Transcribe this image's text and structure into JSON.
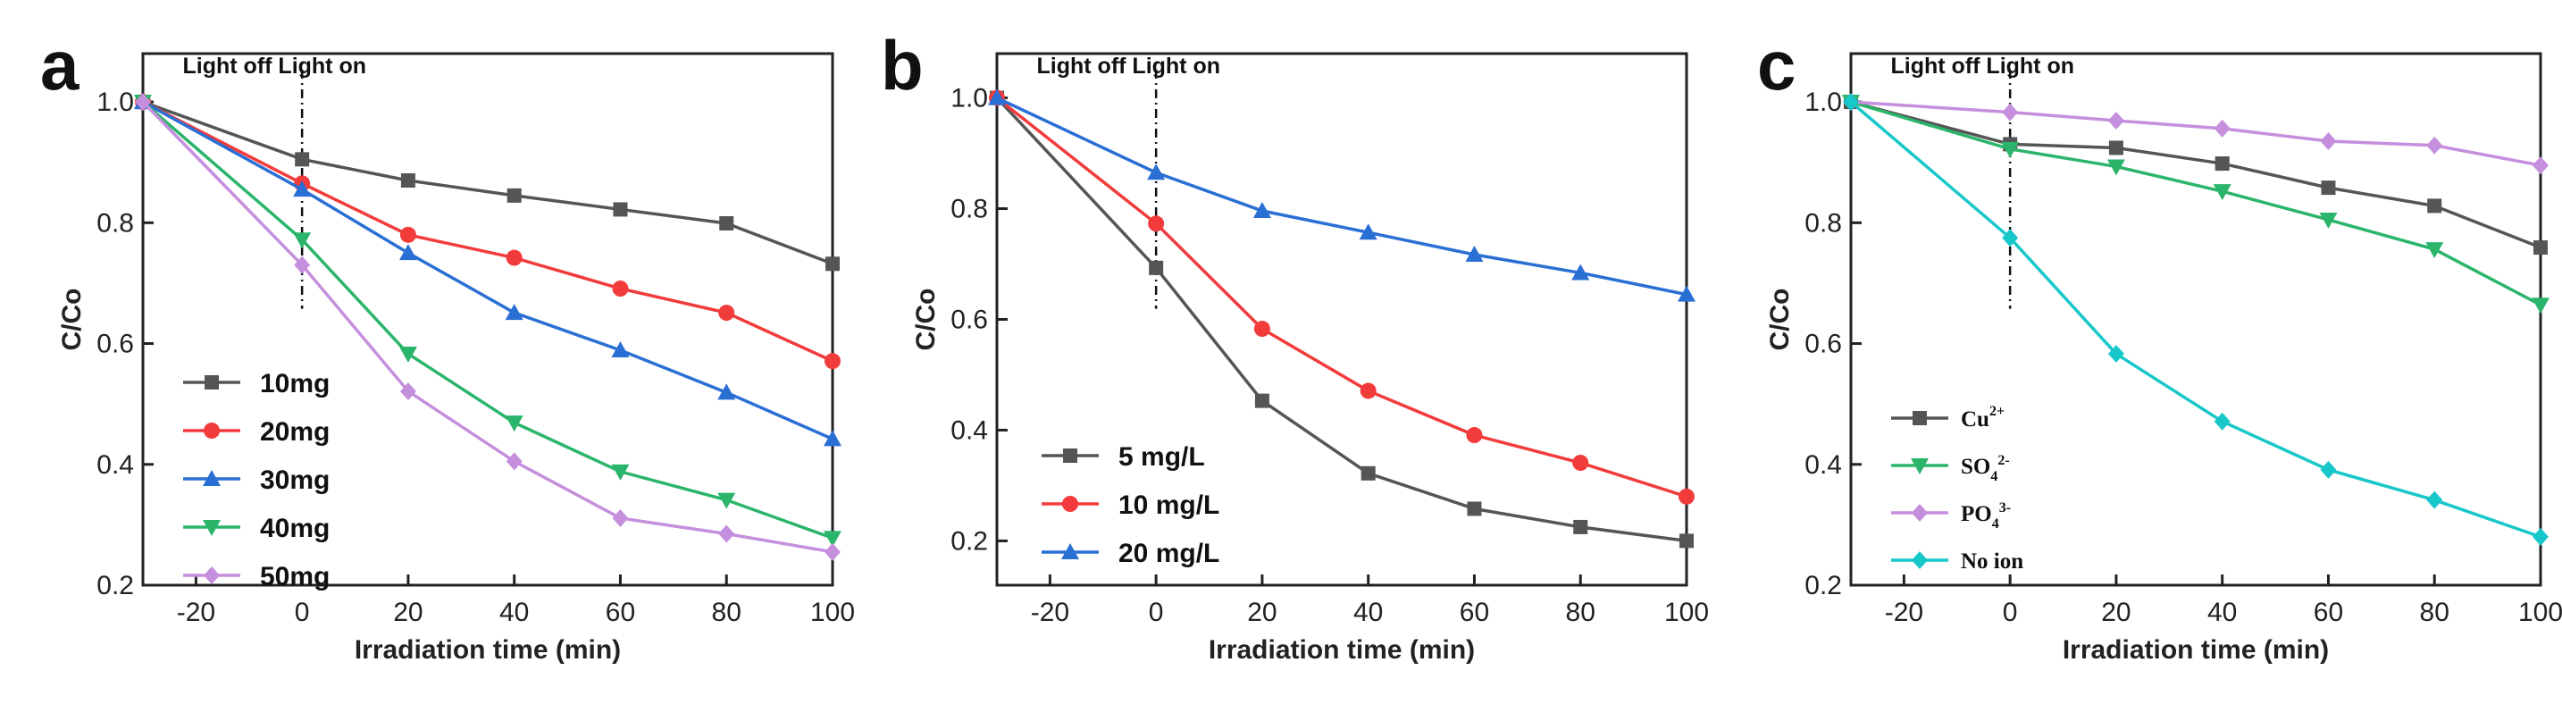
{
  "chart_data": [
    {
      "type": "line",
      "panel_label": "a",
      "light_label": "Light off Light on",
      "xlabel": "Irradiation time (min)",
      "ylabel": "C/Co",
      "xlim": [
        -30,
        100
      ],
      "ylim": [
        0.2,
        1.08
      ],
      "x_ticks": [
        -20,
        0,
        20,
        40,
        60,
        80,
        100
      ],
      "y_ticks": [
        0.2,
        0.4,
        0.6,
        0.8,
        1.0
      ],
      "y_tick_labels": [
        "0.2",
        "0.4",
        "0.6",
        "0.8",
        "1.0"
      ],
      "x": [
        -30,
        0,
        20,
        40,
        60,
        80,
        100
      ],
      "legend_style": "sans",
      "series": [
        {
          "name": "10mg",
          "color": "#555555",
          "marker": "square",
          "values": [
            1.0,
            0.905,
            0.87,
            0.845,
            0.822,
            0.799,
            0.732
          ]
        },
        {
          "name": "20mg",
          "color": "#f23b3b",
          "marker": "circle",
          "values": [
            1.0,
            0.865,
            0.78,
            0.742,
            0.691,
            0.651,
            0.571
          ]
        },
        {
          "name": "30mg",
          "color": "#2a6fd4",
          "marker": "triangle-up",
          "values": [
            1.0,
            0.855,
            0.75,
            0.651,
            0.589,
            0.519,
            0.442
          ]
        },
        {
          "name": "40mg",
          "color": "#2bb56b",
          "marker": "triangle-down",
          "values": [
            1.0,
            0.772,
            0.583,
            0.469,
            0.388,
            0.341,
            0.278
          ]
        },
        {
          "name": "50mg",
          "color": "#c58fdd",
          "marker": "diamond",
          "values": [
            1.0,
            0.73,
            0.521,
            0.405,
            0.311,
            0.285,
            0.255
          ]
        }
      ]
    },
    {
      "type": "line",
      "panel_label": "b",
      "light_label": "Light off Light on",
      "xlabel": "Irradiation time (min)",
      "ylabel": "C/Co",
      "xlim": [
        -30,
        100
      ],
      "ylim": [
        0.12,
        1.08
      ],
      "x_ticks": [
        -20,
        0,
        20,
        40,
        60,
        80,
        100
      ],
      "y_ticks": [
        0.2,
        0.4,
        0.6,
        0.8,
        1.0
      ],
      "y_tick_labels": [
        "0.2",
        "0.4",
        "0.6",
        "0.8",
        "1.0"
      ],
      "x": [
        -30,
        0,
        20,
        40,
        60,
        80,
        100
      ],
      "legend_style": "sans",
      "series": [
        {
          "name": "5 mg/L",
          "color": "#555555",
          "marker": "square",
          "values": [
            1.0,
            0.693,
            0.453,
            0.322,
            0.258,
            0.225,
            0.2
          ]
        },
        {
          "name": "10 mg/L",
          "color": "#f23b3b",
          "marker": "circle",
          "values": [
            1.0,
            0.773,
            0.583,
            0.471,
            0.391,
            0.341,
            0.28
          ]
        },
        {
          "name": "20 mg/L",
          "color": "#2a6fd4",
          "marker": "triangle-up",
          "values": [
            1.0,
            0.865,
            0.796,
            0.757,
            0.717,
            0.684,
            0.645
          ]
        }
      ]
    },
    {
      "type": "line",
      "panel_label": "c",
      "light_label": "Light off Light on",
      "xlabel": "Irradiation time (min)",
      "ylabel": "C/Co",
      "xlim": [
        -30,
        100
      ],
      "ylim": [
        0.2,
        1.08
      ],
      "x_ticks": [
        -20,
        0,
        20,
        40,
        60,
        80,
        100
      ],
      "y_ticks": [
        0.2,
        0.4,
        0.6,
        0.8,
        1.0
      ],
      "y_tick_labels": [
        "0.2",
        "0.4",
        "0.6",
        "0.8",
        "1.0"
      ],
      "x": [
        -30,
        0,
        20,
        40,
        60,
        80,
        100
      ],
      "legend_style": "serif",
      "series": [
        {
          "name": "Cu",
          "sup": "2+",
          "sub": "",
          "color": "#555555",
          "marker": "square",
          "values": [
            1.0,
            0.93,
            0.924,
            0.898,
            0.858,
            0.828,
            0.759
          ]
        },
        {
          "name": "SO",
          "sub": "4",
          "sup": "2-",
          "color": "#2bb56b",
          "marker": "triangle-down",
          "values": [
            1.0,
            0.922,
            0.893,
            0.852,
            0.805,
            0.756,
            0.664
          ]
        },
        {
          "name": "PO",
          "sub": "4",
          "sup": "3-",
          "color": "#c58fdd",
          "marker": "diamond",
          "values": [
            1.0,
            0.983,
            0.969,
            0.956,
            0.935,
            0.928,
            0.895
          ]
        },
        {
          "name": "No ion",
          "sub": "",
          "sup": "",
          "color": "#18c7c9",
          "marker": "diamond",
          "values": [
            1.0,
            0.775,
            0.583,
            0.471,
            0.391,
            0.341,
            0.28
          ]
        }
      ]
    }
  ]
}
